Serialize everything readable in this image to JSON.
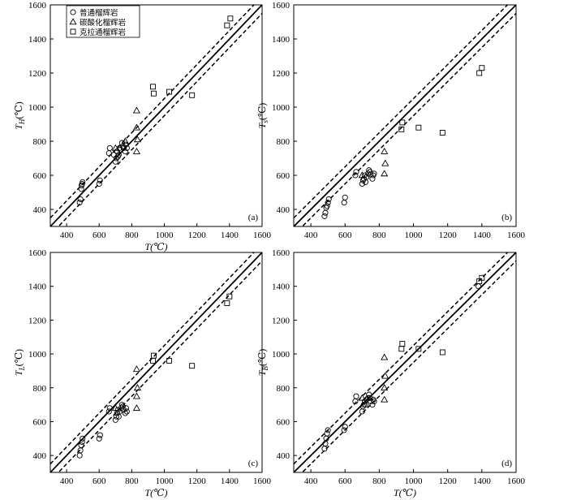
{
  "legend": {
    "items": [
      {
        "marker": "circle",
        "label": "普通榴辉岩"
      },
      {
        "marker": "triangle",
        "label": "碳酸化榴辉岩"
      },
      {
        "marker": "square",
        "label": "克拉通榴辉岩"
      }
    ]
  },
  "chart_data": [
    {
      "type": "scatter",
      "panel_label": "(a)",
      "xlabel": "T(℃)",
      "ylabel": "T_H(℃)",
      "ylabel_main": "T",
      "ylabel_sub": "H",
      "ylabel_unit": "(℃)",
      "xlim": [
        300,
        1600
      ],
      "ylim": [
        300,
        1600
      ],
      "xticks": [
        400,
        600,
        800,
        1000,
        1200,
        1400,
        1600
      ],
      "yticks": [
        400,
        600,
        800,
        1000,
        1200,
        1400,
        1600
      ],
      "reference_lines": {
        "solid_offset": 0,
        "dashed_offsets": [
          50,
          -50
        ]
      },
      "series": [
        {
          "name": "普通榴辉岩",
          "marker": "circle",
          "points": [
            [
              480,
              440
            ],
            [
              485,
              460
            ],
            [
              490,
              520
            ],
            [
              492,
              540
            ],
            [
              495,
              550
            ],
            [
              498,
              560
            ],
            [
              600,
              550
            ],
            [
              605,
              570
            ],
            [
              660,
              730
            ],
            [
              665,
              760
            ],
            [
              690,
              720
            ],
            [
              700,
              680
            ],
            [
              705,
              700
            ],
            [
              710,
              740
            ],
            [
              715,
              710
            ],
            [
              720,
              720
            ],
            [
              725,
              760
            ],
            [
              730,
              750
            ],
            [
              740,
              790
            ],
            [
              745,
              770
            ],
            [
              750,
              760
            ],
            [
              760,
              740
            ],
            [
              762,
              780
            ],
            [
              770,
              760
            ]
          ]
        },
        {
          "name": "碳酸化榴辉岩",
          "marker": "triangle",
          "points": [
            [
              700,
              760
            ],
            [
              760,
              800
            ],
            [
              830,
              980
            ],
            [
              830,
              880
            ],
            [
              835,
              810
            ],
            [
              830,
              740
            ]
          ]
        },
        {
          "name": "克拉通榴辉岩",
          "marker": "square",
          "points": [
            [
              930,
              1120
            ],
            [
              935,
              1080
            ],
            [
              1030,
              1090
            ],
            [
              1170,
              1070
            ],
            [
              1385,
              1480
            ],
            [
              1405,
              1520
            ]
          ]
        }
      ]
    },
    {
      "type": "scatter",
      "panel_label": "(b)",
      "xlabel": "",
      "ylabel": "T_s(℃)",
      "ylabel_main": "T",
      "ylabel_sub": "s",
      "ylabel_unit": "(℃)",
      "xlim": [
        300,
        1600
      ],
      "ylim": [
        300,
        1600
      ],
      "xticks": [
        400,
        600,
        800,
        1000,
        1200,
        1400,
        1600
      ],
      "yticks": [
        400,
        600,
        800,
        1000,
        1200,
        1400,
        1600
      ],
      "reference_lines": {
        "solid_offset": 0,
        "dashed_offsets": [
          50,
          -50
        ]
      },
      "series": [
        {
          "name": "普通榴辉岩",
          "marker": "circle",
          "points": [
            [
              480,
              360
            ],
            [
              485,
              380
            ],
            [
              490,
              410
            ],
            [
              495,
              420
            ],
            [
              500,
              440
            ],
            [
              505,
              460
            ],
            [
              595,
              440
            ],
            [
              600,
              470
            ],
            [
              660,
              600
            ],
            [
              665,
              620
            ],
            [
              700,
              550
            ],
            [
              705,
              570
            ],
            [
              710,
              580
            ],
            [
              715,
              600
            ],
            [
              720,
              560
            ],
            [
              725,
              590
            ],
            [
              735,
              610
            ],
            [
              740,
              630
            ],
            [
              745,
              620
            ],
            [
              750,
              605
            ],
            [
              760,
              580
            ],
            [
              765,
              600
            ],
            [
              770,
              610
            ]
          ]
        },
        {
          "name": "碳酸化榴辉岩",
          "marker": "triangle",
          "points": [
            [
              700,
              600
            ],
            [
              830,
              740
            ],
            [
              835,
              670
            ],
            [
              830,
              610
            ]
          ]
        },
        {
          "name": "克拉通榴辉岩",
          "marker": "square",
          "points": [
            [
              930,
              870
            ],
            [
              935,
              910
            ],
            [
              1030,
              880
            ],
            [
              1170,
              850
            ],
            [
              1385,
              1200
            ],
            [
              1400,
              1230
            ]
          ]
        }
      ]
    },
    {
      "type": "scatter",
      "panel_label": "(c)",
      "xlabel": "T(℃)",
      "ylabel": "T_L(℃)",
      "ylabel_main": "T",
      "ylabel_sub": "L",
      "ylabel_unit": "(℃)",
      "xlim": [
        300,
        1600
      ],
      "ylim": [
        300,
        1600
      ],
      "xticks": [
        400,
        600,
        800,
        1000,
        1200,
        1400,
        1600
      ],
      "yticks": [
        400,
        600,
        800,
        1000,
        1200,
        1400,
        1600
      ],
      "reference_lines": {
        "solid_offset": 0,
        "dashed_offsets": [
          50,
          -50
        ]
      },
      "series": [
        {
          "name": "普通榴辉岩",
          "marker": "circle",
          "points": [
            [
              480,
              400
            ],
            [
              485,
              430
            ],
            [
              490,
              460
            ],
            [
              495,
              480
            ],
            [
              498,
              500
            ],
            [
              600,
              500
            ],
            [
              605,
              520
            ],
            [
              660,
              660
            ],
            [
              665,
              680
            ],
            [
              700,
              610
            ],
            [
              705,
              630
            ],
            [
              710,
              650
            ],
            [
              715,
              670
            ],
            [
              720,
              630
            ],
            [
              725,
              660
            ],
            [
              735,
              680
            ],
            [
              740,
              700
            ],
            [
              745,
              690
            ],
            [
              750,
              670
            ],
            [
              760,
              650
            ],
            [
              765,
              680
            ],
            [
              770,
              660
            ]
          ]
        },
        {
          "name": "碳酸化榴辉岩",
          "marker": "triangle",
          "points": [
            [
              700,
              680
            ],
            [
              830,
              910
            ],
            [
              835,
              800
            ],
            [
              830,
              750
            ],
            [
              830,
              680
            ]
          ]
        },
        {
          "name": "克拉通榴辉岩",
          "marker": "square",
          "points": [
            [
              930,
              960
            ],
            [
              935,
              990
            ],
            [
              1030,
              960
            ],
            [
              1170,
              930
            ],
            [
              1385,
              1300
            ],
            [
              1400,
              1340
            ]
          ]
        }
      ]
    },
    {
      "type": "scatter",
      "panel_label": "(d)",
      "xlabel": "T(℃)",
      "ylabel": "T_B(℃)",
      "ylabel_main": "T",
      "ylabel_sub": "B",
      "ylabel_unit": "(℃)",
      "xlim": [
        300,
        1600
      ],
      "ylim": [
        300,
        1600
      ],
      "xticks": [
        400,
        600,
        800,
        1000,
        1200,
        1400,
        1600
      ],
      "yticks": [
        400,
        600,
        800,
        1000,
        1200,
        1400,
        1600
      ],
      "reference_lines": {
        "solid_offset": 0,
        "dashed_offsets": [
          50,
          -50
        ]
      },
      "series": [
        {
          "name": "普通榴辉岩",
          "marker": "circle",
          "points": [
            [
              480,
              440
            ],
            [
              485,
              470
            ],
            [
              490,
              500
            ],
            [
              495,
              530
            ],
            [
              500,
              550
            ],
            [
              595,
              550
            ],
            [
              600,
              570
            ],
            [
              660,
              720
            ],
            [
              665,
              750
            ],
            [
              700,
              660
            ],
            [
              705,
              690
            ],
            [
              710,
              700
            ],
            [
              715,
              720
            ],
            [
              720,
              700
            ],
            [
              725,
              730
            ],
            [
              735,
              740
            ],
            [
              740,
              760
            ],
            [
              745,
              740
            ],
            [
              750,
              720
            ],
            [
              760,
              700
            ],
            [
              765,
              730
            ],
            [
              770,
              720
            ],
            [
              1380,
              1400
            ]
          ]
        },
        {
          "name": "碳酸化榴辉岩",
          "marker": "triangle",
          "points": [
            [
              700,
              740
            ],
            [
              830,
              980
            ],
            [
              835,
              870
            ],
            [
              830,
              800
            ],
            [
              830,
              730
            ]
          ]
        },
        {
          "name": "克拉通榴辉岩",
          "marker": "square",
          "points": [
            [
              930,
              1030
            ],
            [
              935,
              1060
            ],
            [
              1030,
              1030
            ],
            [
              1170,
              1010
            ],
            [
              1385,
              1430
            ],
            [
              1400,
              1450
            ]
          ]
        }
      ]
    }
  ]
}
